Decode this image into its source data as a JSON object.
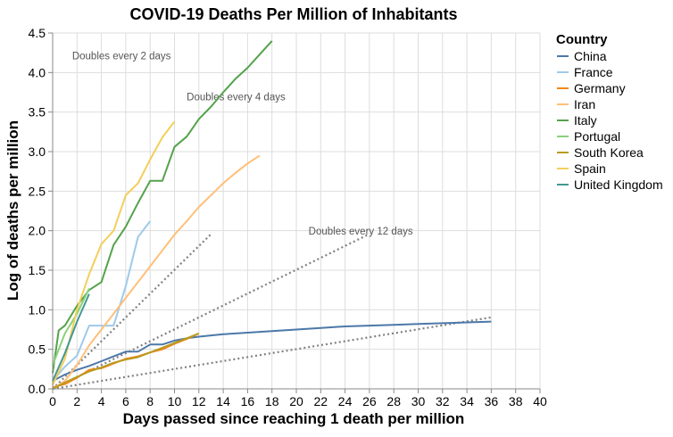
{
  "chart_data": {
    "type": "line",
    "title": "COVID-19 Deaths Per Million of Inhabitants",
    "xlabel": "Days passed since reaching 1 death per million",
    "ylabel": "Log of deaths per million",
    "xlim": [
      0,
      40
    ],
    "ylim": [
      0,
      4.5
    ],
    "x_ticks": [
      0,
      2,
      4,
      6,
      8,
      10,
      12,
      14,
      16,
      18,
      20,
      22,
      24,
      26,
      28,
      30,
      32,
      34,
      36,
      38,
      40
    ],
    "y_ticks": [
      0.0,
      0.5,
      1.0,
      1.5,
      2.0,
      2.5,
      3.0,
      3.5,
      4.0,
      4.5
    ],
    "y_tick_labels": [
      "0.0",
      "0.5",
      "1.0",
      "1.5",
      "2.0",
      "2.5",
      "3.0",
      "3.5",
      "4.0",
      "4.5"
    ],
    "grid": true,
    "legend": {
      "title": "Country",
      "placement": "right"
    },
    "series": [
      {
        "name": "China",
        "color": "#4c78a8",
        "x": [
          0,
          1,
          2,
          3,
          4,
          5,
          6,
          7,
          8,
          9,
          10,
          11,
          12,
          14,
          16,
          18,
          20,
          22,
          24,
          26,
          28,
          30,
          32,
          34,
          36
        ],
        "y": [
          0.1,
          0.18,
          0.24,
          0.29,
          0.35,
          0.41,
          0.47,
          0.47,
          0.56,
          0.56,
          0.61,
          0.64,
          0.66,
          0.69,
          0.71,
          0.73,
          0.75,
          0.77,
          0.79,
          0.8,
          0.81,
          0.82,
          0.83,
          0.84,
          0.85
        ]
      },
      {
        "name": "France",
        "color": "#9ecae9",
        "x": [
          0,
          1,
          2,
          3,
          4,
          5,
          6,
          7,
          8
        ],
        "y": [
          0.1,
          0.28,
          0.42,
          0.8,
          0.8,
          0.8,
          1.3,
          1.92,
          2.12
        ]
      },
      {
        "name": "Germany",
        "color": "#f58518",
        "x": [
          0,
          1,
          2,
          3,
          4,
          5,
          6,
          7,
          8,
          9,
          10,
          11,
          12
        ],
        "y": [
          0.02,
          0.06,
          0.14,
          0.24,
          0.26,
          0.32,
          0.38,
          0.41,
          0.46,
          0.5,
          0.57,
          0.63,
          0.7
        ]
      },
      {
        "name": "Iran",
        "color": "#ffbf79",
        "x": [
          0,
          1,
          2,
          3,
          4,
          5,
          6,
          7,
          8,
          9,
          10,
          11,
          12,
          13,
          14,
          15,
          16,
          17
        ],
        "y": [
          0.0,
          0.1,
          0.3,
          0.55,
          0.75,
          0.95,
          1.15,
          1.35,
          1.55,
          1.75,
          1.95,
          2.12,
          2.3,
          2.45,
          2.6,
          2.73,
          2.85,
          2.95
        ]
      },
      {
        "name": "Italy",
        "color": "#54a24b",
        "x": [
          0,
          0.5,
          1,
          2,
          3,
          4,
          5,
          6,
          7,
          8,
          9,
          10,
          11,
          12,
          13,
          14,
          15,
          16,
          17,
          18
        ],
        "y": [
          0.2,
          0.74,
          0.8,
          1.05,
          1.25,
          1.35,
          1.82,
          2.05,
          2.35,
          2.63,
          2.63,
          3.06,
          3.19,
          3.41,
          3.57,
          3.75,
          3.92,
          4.06,
          4.23,
          4.4
        ]
      },
      {
        "name": "Portugal",
        "color": "#88d27a",
        "x": [
          0,
          1,
          2,
          3
        ],
        "y": [
          0.3,
          0.7,
          0.95,
          1.27
        ]
      },
      {
        "name": "South Korea",
        "color": "#b79a20",
        "x": [
          0,
          1,
          2,
          3,
          4,
          5,
          6,
          7,
          8,
          9,
          10,
          11,
          12
        ],
        "y": [
          0.0,
          0.08,
          0.15,
          0.22,
          0.27,
          0.33,
          0.37,
          0.4,
          0.46,
          0.52,
          0.58,
          0.64,
          0.7
        ]
      },
      {
        "name": "Spain",
        "color": "#f2cf5b",
        "x": [
          0,
          1,
          2,
          3,
          4,
          5,
          6,
          7,
          8,
          9,
          10
        ],
        "y": [
          0.05,
          0.38,
          1.0,
          1.45,
          1.83,
          2.0,
          2.45,
          2.6,
          2.9,
          3.18,
          3.38
        ]
      },
      {
        "name": "United Kingdom",
        "color": "#439894",
        "x": [
          0,
          1,
          2,
          3
        ],
        "y": [
          0.1,
          0.45,
          0.85,
          1.2
        ]
      }
    ],
    "reference_lines": [
      {
        "label": "Doubles every 2 days",
        "slope": 0.1505,
        "x_end": 13
      },
      {
        "label": "Doubles every 4 days",
        "slope": 0.0753,
        "x_end": 26
      },
      {
        "label": "Doubles every 12 days",
        "slope": 0.0251,
        "x_end": 36
      }
    ],
    "reference_line_color": "#808080"
  }
}
